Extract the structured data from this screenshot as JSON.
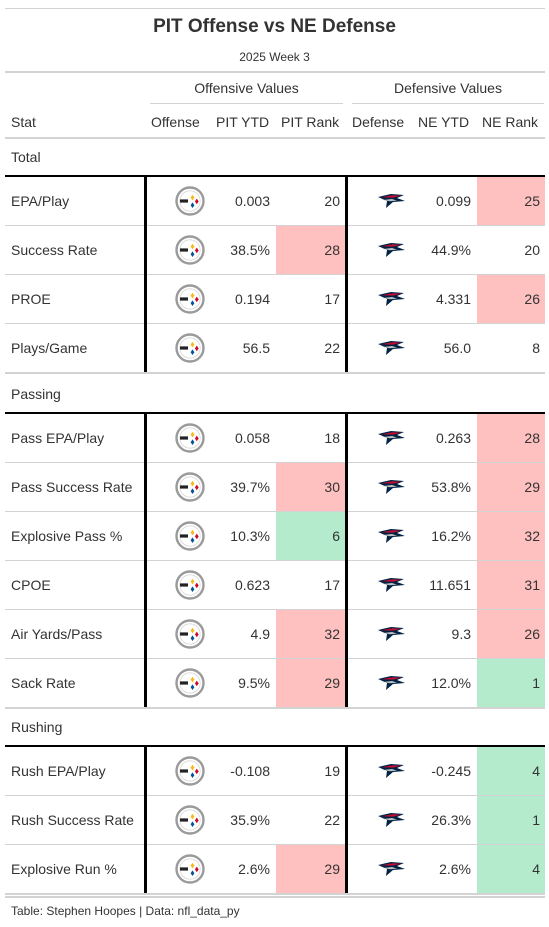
{
  "header": {
    "title": "PIT Offense vs NE Defense",
    "subtitle": "2025 Week 3"
  },
  "spanners": {
    "offense": "Offensive Values",
    "defense": "Defensive Values"
  },
  "columns": {
    "stat": "Stat",
    "offense": "Offense",
    "pit_ytd": "PIT YTD",
    "pit_rank": "PIT Rank",
    "defense": "Defense",
    "ne_ytd": "NE YTD",
    "ne_rank": "NE Rank"
  },
  "colors": {
    "bad_rank": "#ffc0c0",
    "good_rank": "#b3ebcc",
    "pit_logo_gold": "#ffb612",
    "pit_logo_red": "#c8102e",
    "pit_logo_blue": "#00539b",
    "ne_logo_navy": "#002244",
    "ne_logo_red": "#c60c30"
  },
  "icons": {
    "offense_logo": "steelers-logo-icon",
    "defense_logo": "patriots-logo-icon"
  },
  "chart_data": {
    "type": "table",
    "title": "PIT Offense vs NE Defense",
    "subtitle": "2025 Week 3",
    "groups": [
      {
        "name": "Total",
        "rows": [
          {
            "stat": "EPA/Play",
            "pit_ytd": "0.003",
            "pit_rank": 20,
            "ne_ytd": "0.099",
            "ne_rank": 25,
            "pit_shade": "",
            "ne_shade": "bad"
          },
          {
            "stat": "Success Rate",
            "pit_ytd": "38.5%",
            "pit_rank": 28,
            "ne_ytd": "44.9%",
            "ne_rank": 20,
            "pit_shade": "bad",
            "ne_shade": ""
          },
          {
            "stat": "PROE",
            "pit_ytd": "0.194",
            "pit_rank": 17,
            "ne_ytd": "4.331",
            "ne_rank": 26,
            "pit_shade": "",
            "ne_shade": "bad"
          },
          {
            "stat": "Plays/Game",
            "pit_ytd": "56.5",
            "pit_rank": 22,
            "ne_ytd": "56.0",
            "ne_rank": 8,
            "pit_shade": "",
            "ne_shade": ""
          }
        ]
      },
      {
        "name": "Passing",
        "rows": [
          {
            "stat": "Pass EPA/Play",
            "pit_ytd": "0.058",
            "pit_rank": 18,
            "ne_ytd": "0.263",
            "ne_rank": 28,
            "pit_shade": "",
            "ne_shade": "bad"
          },
          {
            "stat": "Pass Success Rate",
            "pit_ytd": "39.7%",
            "pit_rank": 30,
            "ne_ytd": "53.8%",
            "ne_rank": 29,
            "pit_shade": "bad",
            "ne_shade": "bad"
          },
          {
            "stat": "Explosive Pass %",
            "pit_ytd": "10.3%",
            "pit_rank": 6,
            "ne_ytd": "16.2%",
            "ne_rank": 32,
            "pit_shade": "good",
            "ne_shade": "bad"
          },
          {
            "stat": "CPOE",
            "pit_ytd": "0.623",
            "pit_rank": 17,
            "ne_ytd": "11.651",
            "ne_rank": 31,
            "pit_shade": "",
            "ne_shade": "bad"
          },
          {
            "stat": "Air Yards/Pass",
            "pit_ytd": "4.9",
            "pit_rank": 32,
            "ne_ytd": "9.3",
            "ne_rank": 26,
            "pit_shade": "bad",
            "ne_shade": "bad"
          },
          {
            "stat": "Sack Rate",
            "pit_ytd": "9.5%",
            "pit_rank": 29,
            "ne_ytd": "12.0%",
            "ne_rank": 1,
            "pit_shade": "bad",
            "ne_shade": "good"
          }
        ]
      },
      {
        "name": "Rushing",
        "rows": [
          {
            "stat": "Rush EPA/Play",
            "pit_ytd": "-0.108",
            "pit_rank": 19,
            "ne_ytd": "-0.245",
            "ne_rank": 4,
            "pit_shade": "",
            "ne_shade": "good"
          },
          {
            "stat": "Rush Success Rate",
            "pit_ytd": "35.9%",
            "pit_rank": 22,
            "ne_ytd": "26.3%",
            "ne_rank": 1,
            "pit_shade": "",
            "ne_shade": "good"
          },
          {
            "stat": "Explosive Run %",
            "pit_ytd": "2.6%",
            "pit_rank": 29,
            "ne_ytd": "2.6%",
            "ne_rank": 4,
            "pit_shade": "bad",
            "ne_shade": "good"
          }
        ]
      }
    ]
  },
  "footer": {
    "source": "Table: Stephen Hoopes | Data: nfl_data_py"
  }
}
